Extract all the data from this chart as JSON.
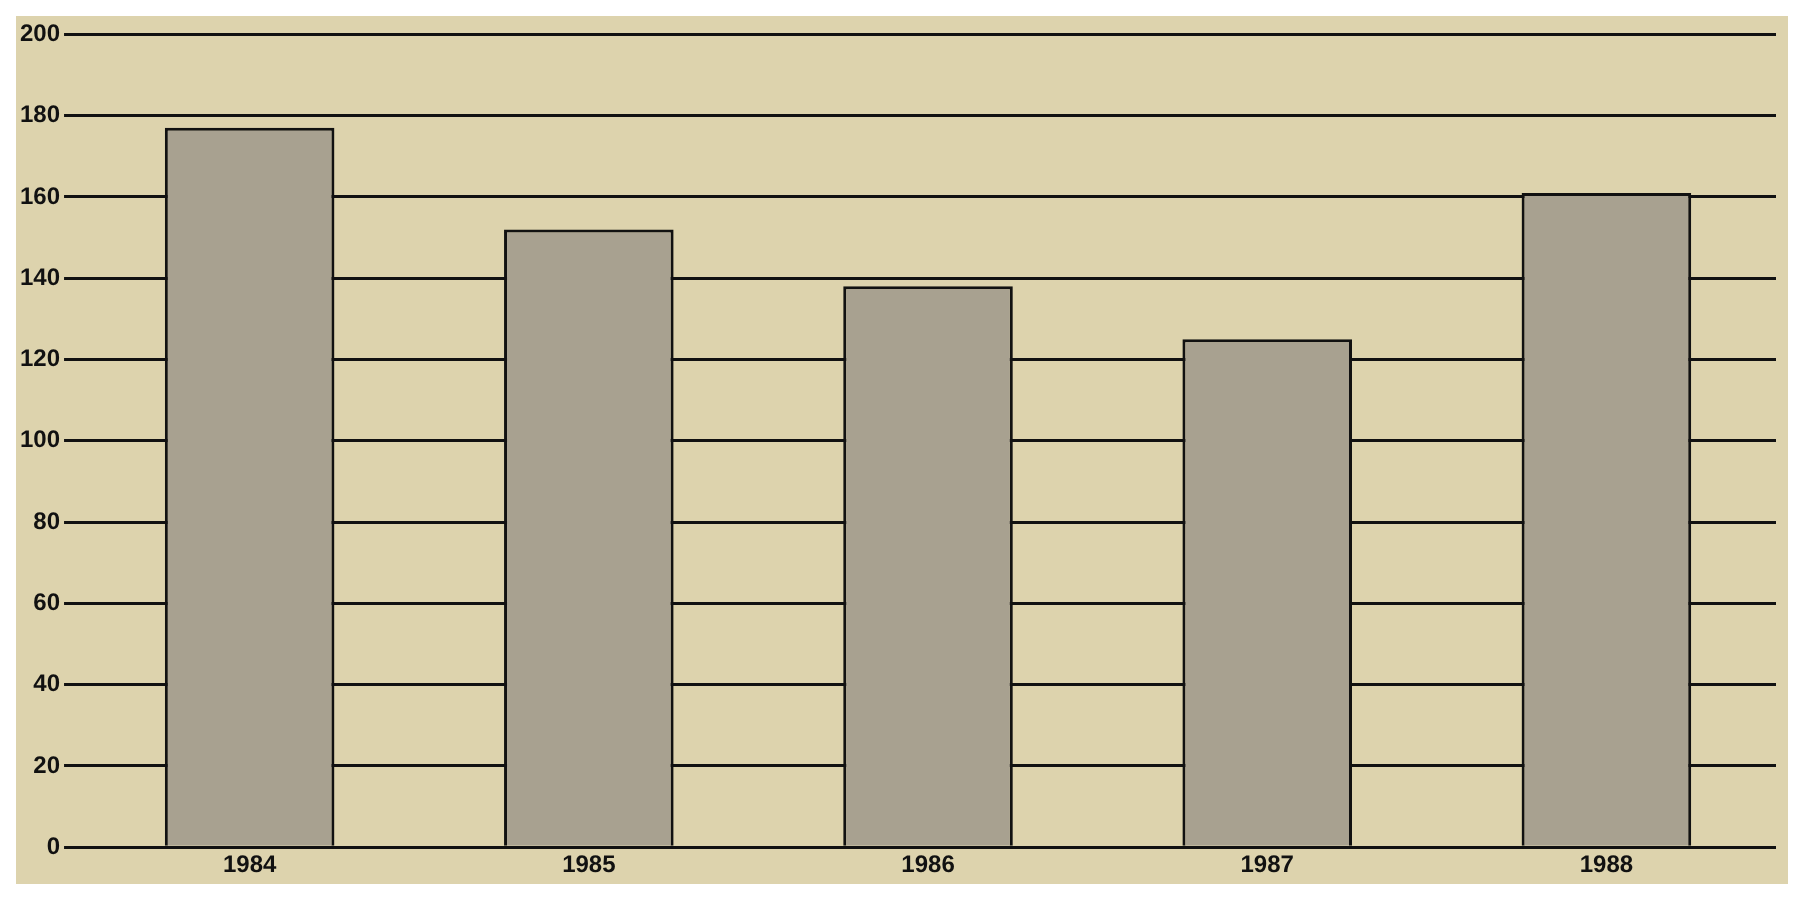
{
  "chart_data": {
    "type": "bar",
    "categories": [
      "1984",
      "1985",
      "1986",
      "1987",
      "1988"
    ],
    "values": [
      177,
      152,
      138,
      125,
      161
    ],
    "color": "#a8a190",
    "ylim": [
      0,
      200
    ],
    "yticks": [
      0,
      20,
      40,
      60,
      80,
      100,
      120,
      140,
      160,
      180,
      200
    ],
    "grid": "y"
  }
}
